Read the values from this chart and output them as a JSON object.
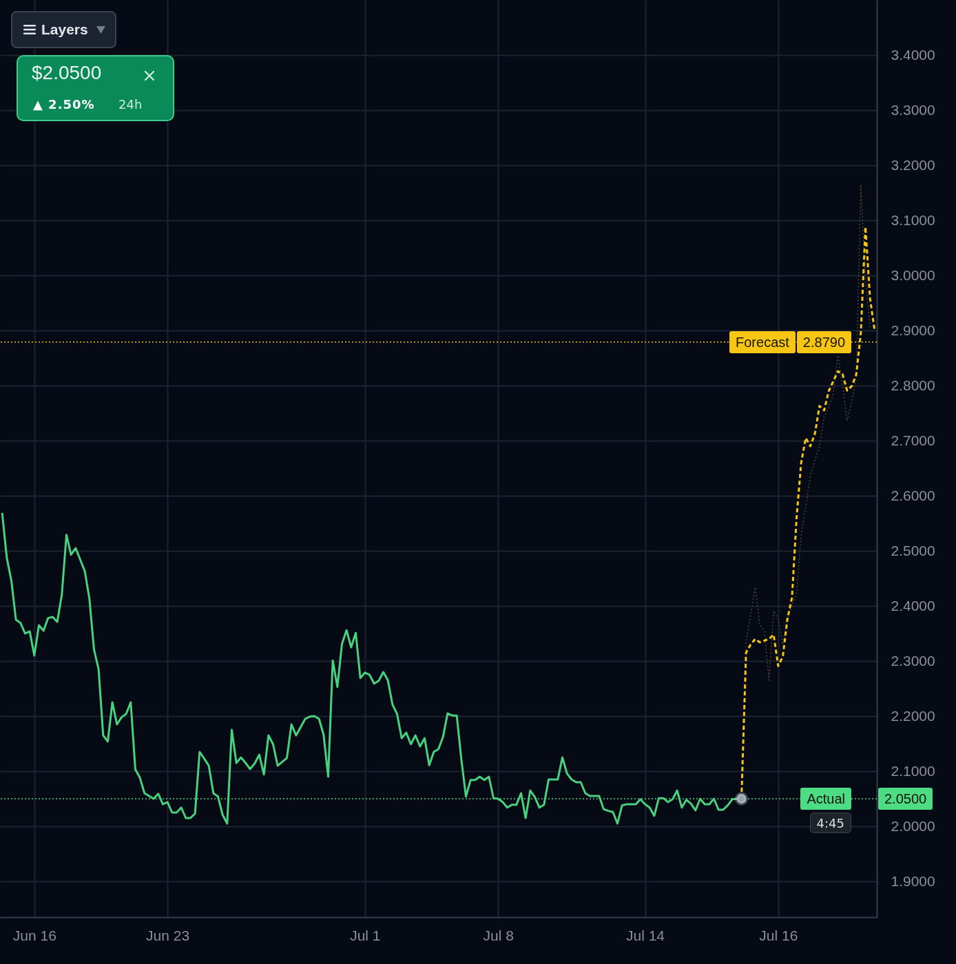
{
  "chart_data": {
    "type": "line",
    "categories": [
      null,
      null,
      null,
      null,
      null,
      null,
      null,
      "Jun 16",
      null,
      null,
      null,
      null,
      null,
      null,
      null,
      null,
      null,
      null,
      null,
      null,
      null,
      null,
      null,
      null,
      null,
      null,
      null,
      null,
      null,
      null,
      null,
      null,
      null,
      null,
      null,
      null,
      "Jun 23",
      null,
      null,
      null,
      null,
      null,
      null,
      null,
      null,
      null,
      null,
      null,
      null,
      null,
      null,
      null,
      null,
      null,
      null,
      null,
      null,
      null,
      null,
      null,
      null,
      null,
      null,
      null,
      null,
      null,
      null,
      null,
      null,
      null,
      null,
      null,
      null,
      null,
      null,
      null,
      null,
      null,
      null,
      "Jul 1",
      null,
      null,
      null,
      null,
      null,
      null,
      null,
      null,
      null,
      null,
      null,
      null,
      null,
      null,
      null,
      null,
      null,
      null,
      null,
      null,
      null,
      null,
      null,
      null,
      null,
      null,
      null,
      null,
      "Jul 8",
      null,
      null,
      null,
      null,
      null,
      null,
      null,
      null,
      null,
      null,
      null,
      null,
      null,
      null,
      null,
      null,
      null,
      null,
      null,
      null,
      null,
      null,
      null,
      null,
      null,
      null,
      null,
      null,
      null,
      null,
      null,
      "Jul 14",
      null,
      null,
      null,
      null,
      null,
      null,
      null,
      null,
      null,
      null,
      null,
      null,
      null,
      null,
      null,
      null,
      null,
      null,
      null,
      null,
      null,
      null,
      null,
      null,
      null,
      null,
      null,
      null,
      "Jul 16",
      null,
      null,
      null,
      null,
      null,
      null,
      null,
      null,
      null,
      null,
      null,
      null,
      null,
      null,
      null,
      null,
      null,
      null,
      null,
      null,
      null
    ],
    "ylim": [
      1.835,
      3.5
    ],
    "yticks": [
      {
        "value": 1.9,
        "label": "1.9000"
      },
      {
        "value": 2.0,
        "label": "2.0000"
      },
      {
        "value": 2.1,
        "label": "2.1000"
      },
      {
        "value": 2.2,
        "label": "2.2000"
      },
      {
        "value": 2.3,
        "label": "2.3000"
      },
      {
        "value": 2.4,
        "label": "2.4000"
      },
      {
        "value": 2.5,
        "label": "2.5000"
      },
      {
        "value": 2.6,
        "label": "2.6000"
      },
      {
        "value": 2.7,
        "label": "2.7000"
      },
      {
        "value": 2.8,
        "label": "2.8000"
      },
      {
        "value": 2.9,
        "label": "2.9000"
      },
      {
        "value": 3.0,
        "label": "3.0000"
      },
      {
        "value": 3.1,
        "label": "3.1000"
      },
      {
        "value": 3.2,
        "label": "3.2000"
      },
      {
        "value": 3.3,
        "label": "3.3000"
      },
      {
        "value": 3.4,
        "label": "3.4000"
      }
    ],
    "grid": true,
    "ref_lines": [
      {
        "axis": "y",
        "value": 2.879,
        "label": "Forecast",
        "color": "#f7c514",
        "line_style": "dotted"
      },
      {
        "axis": "y",
        "value": 2.05,
        "label": "Actual",
        "color": "#4ddc84",
        "line_style": "dotted"
      }
    ],
    "annotations": [
      "Layers",
      "$2.0500",
      "▲ 2.50%",
      "24h",
      "4:45",
      "2.8790",
      "2.0500"
    ],
    "series": [
      {
        "color": "#4a4634",
        "line_style": "dotted",
        "values": [
          null,
          null,
          null,
          null,
          null,
          null,
          null,
          null,
          null,
          null,
          null,
          null,
          null,
          null,
          null,
          null,
          null,
          null,
          null,
          null,
          null,
          null,
          null,
          null,
          null,
          null,
          null,
          null,
          null,
          null,
          null,
          null,
          null,
          null,
          null,
          null,
          null,
          null,
          null,
          null,
          null,
          null,
          null,
          null,
          null,
          null,
          null,
          null,
          null,
          null,
          null,
          null,
          null,
          null,
          null,
          null,
          null,
          null,
          null,
          null,
          null,
          null,
          null,
          null,
          null,
          null,
          null,
          null,
          null,
          null,
          null,
          null,
          null,
          null,
          null,
          null,
          null,
          null,
          null,
          null,
          null,
          null,
          null,
          null,
          null,
          null,
          null,
          null,
          null,
          null,
          null,
          null,
          null,
          null,
          null,
          null,
          null,
          null,
          null,
          null,
          null,
          null,
          null,
          null,
          null,
          null,
          null,
          null,
          null,
          null,
          null,
          null,
          null,
          null,
          null,
          null,
          null,
          null,
          null,
          null,
          null,
          null,
          null,
          null,
          null,
          null,
          null,
          null,
          null,
          null,
          null,
          null,
          null,
          null,
          null,
          null,
          null,
          null,
          null,
          null,
          null,
          null,
          null,
          null,
          null,
          null,
          null,
          null,
          null,
          null,
          null,
          null,
          null,
          null,
          null,
          null,
          null,
          null,
          null,
          null,
          null,
          2.05,
          2.334,
          2.384,
          2.434,
          2.365,
          2.354,
          2.265,
          2.391,
          2.376,
          2.33,
          2.376,
          2.4,
          2.423,
          2.529,
          2.58,
          2.636,
          2.665,
          2.69,
          2.744,
          2.759,
          2.786,
          2.855,
          2.8,
          2.736,
          2.77,
          2.82,
          3.165,
          2.996,
          2.905,
          null
        ]
      },
      {
        "color": "#48d17f",
        "line_style": "solid",
        "values": [
          2.569,
          2.488,
          2.446,
          2.375,
          2.369,
          2.35,
          2.354,
          2.31,
          2.365,
          2.355,
          2.378,
          2.38,
          2.371,
          2.421,
          2.529,
          2.493,
          2.505,
          2.484,
          2.463,
          2.413,
          2.321,
          2.285,
          2.165,
          2.154,
          2.225,
          2.185,
          2.198,
          2.204,
          2.225,
          2.103,
          2.088,
          2.06,
          2.055,
          2.05,
          2.059,
          2.04,
          2.044,
          2.025,
          2.025,
          2.034,
          2.015,
          2.015,
          2.023,
          2.135,
          2.123,
          2.11,
          2.06,
          2.054,
          2.021,
          2.005,
          2.175,
          2.115,
          2.125,
          2.115,
          2.104,
          2.114,
          2.13,
          2.094,
          2.165,
          2.149,
          2.11,
          2.117,
          2.124,
          2.185,
          2.165,
          2.18,
          2.195,
          2.199,
          2.2,
          2.195,
          2.166,
          2.09,
          2.301,
          2.253,
          2.331,
          2.356,
          2.325,
          2.351,
          2.269,
          2.279,
          2.275,
          2.259,
          2.264,
          2.28,
          2.265,
          2.221,
          2.204,
          2.16,
          2.17,
          2.149,
          2.165,
          2.145,
          2.16,
          2.111,
          2.135,
          2.14,
          2.162,
          2.205,
          2.201,
          2.201,
          2.121,
          2.054,
          2.084,
          2.084,
          2.09,
          2.084,
          2.09,
          2.051,
          2.05,
          2.044,
          2.034,
          2.039,
          2.039,
          2.06,
          2.015,
          2.065,
          2.053,
          2.034,
          2.039,
          2.085,
          2.085,
          2.085,
          2.125,
          2.096,
          2.085,
          2.08,
          2.08,
          2.06,
          2.055,
          2.055,
          2.055,
          2.031,
          2.028,
          2.026,
          2.005,
          2.038,
          2.04,
          2.04,
          2.04,
          2.049,
          2.04,
          2.034,
          2.019,
          2.051,
          2.051,
          2.044,
          2.049,
          2.065,
          2.034,
          2.048,
          2.041,
          2.029,
          2.05,
          2.04,
          2.04,
          2.05,
          2.03,
          2.03,
          2.038,
          2.049,
          2.05,
          2.05,
          null,
          null,
          null,
          null,
          null,
          null,
          null,
          null,
          null,
          null,
          null,
          null,
          null,
          null,
          null,
          null,
          null,
          null,
          null,
          null,
          null,
          null,
          null,
          null,
          null,
          null,
          null,
          null,
          null
        ]
      },
      {
        "color": "#f7c514",
        "line_style": "dashed",
        "values": [
          null,
          null,
          null,
          null,
          null,
          null,
          null,
          null,
          null,
          null,
          null,
          null,
          null,
          null,
          null,
          null,
          null,
          null,
          null,
          null,
          null,
          null,
          null,
          null,
          null,
          null,
          null,
          null,
          null,
          null,
          null,
          null,
          null,
          null,
          null,
          null,
          null,
          null,
          null,
          null,
          null,
          null,
          null,
          null,
          null,
          null,
          null,
          null,
          null,
          null,
          null,
          null,
          null,
          null,
          null,
          null,
          null,
          null,
          null,
          null,
          null,
          null,
          null,
          null,
          null,
          null,
          null,
          null,
          null,
          null,
          null,
          null,
          null,
          null,
          null,
          null,
          null,
          null,
          null,
          null,
          null,
          null,
          null,
          null,
          null,
          null,
          null,
          null,
          null,
          null,
          null,
          null,
          null,
          null,
          null,
          null,
          null,
          null,
          null,
          null,
          null,
          null,
          null,
          null,
          null,
          null,
          null,
          null,
          null,
          null,
          null,
          null,
          null,
          null,
          null,
          null,
          null,
          null,
          null,
          null,
          null,
          null,
          null,
          null,
          null,
          null,
          null,
          null,
          null,
          null,
          null,
          null,
          null,
          null,
          null,
          null,
          null,
          null,
          null,
          null,
          null,
          null,
          null,
          null,
          null,
          null,
          null,
          null,
          null,
          null,
          null,
          null,
          null,
          null,
          null,
          null,
          null,
          null,
          null,
          null,
          null,
          2.05,
          2.315,
          2.33,
          2.34,
          2.334,
          2.337,
          2.34,
          2.348,
          2.291,
          2.308,
          2.376,
          2.415,
          2.56,
          2.66,
          2.705,
          2.69,
          2.713,
          2.763,
          2.755,
          2.79,
          2.808,
          2.826,
          2.821,
          2.791,
          2.799,
          2.82,
          2.896,
          3.088,
          2.958,
          2.9
        ]
      },
      {
        "type": "scatter",
        "color": "#9aa1ab",
        "marker": "circle",
        "values": [
          null,
          null,
          null,
          null,
          null,
          null,
          null,
          null,
          null,
          null,
          null,
          null,
          null,
          null,
          null,
          null,
          null,
          null,
          null,
          null,
          null,
          null,
          null,
          null,
          null,
          null,
          null,
          null,
          null,
          null,
          null,
          null,
          null,
          null,
          null,
          null,
          null,
          null,
          null,
          null,
          null,
          null,
          null,
          null,
          null,
          null,
          null,
          null,
          null,
          null,
          null,
          null,
          null,
          null,
          null,
          null,
          null,
          null,
          null,
          null,
          null,
          null,
          null,
          null,
          null,
          null,
          null,
          null,
          null,
          null,
          null,
          null,
          null,
          null,
          null,
          null,
          null,
          null,
          null,
          null,
          null,
          null,
          null,
          null,
          null,
          null,
          null,
          null,
          null,
          null,
          null,
          null,
          null,
          null,
          null,
          null,
          null,
          null,
          null,
          null,
          null,
          null,
          null,
          null,
          null,
          null,
          null,
          null,
          null,
          null,
          null,
          null,
          null,
          null,
          null,
          null,
          null,
          null,
          null,
          null,
          null,
          null,
          null,
          null,
          null,
          null,
          null,
          null,
          null,
          null,
          null,
          null,
          null,
          null,
          null,
          null,
          null,
          null,
          null,
          null,
          null,
          null,
          null,
          null,
          null,
          null,
          null,
          null,
          null,
          null,
          null,
          null,
          null,
          null,
          null,
          null,
          null,
          null,
          null,
          null,
          null,
          2.05,
          null,
          null,
          null,
          null,
          null,
          null,
          null,
          null,
          null,
          null,
          null,
          null,
          null,
          null,
          null,
          null,
          null,
          null,
          null,
          null,
          null,
          null,
          null,
          null,
          null,
          null,
          null,
          null,
          null
        ]
      }
    ]
  }
}
